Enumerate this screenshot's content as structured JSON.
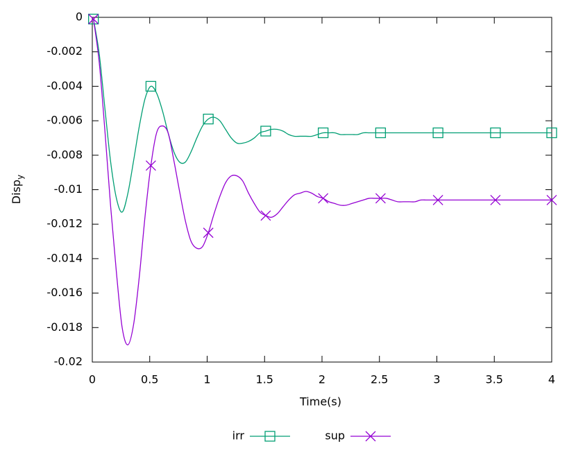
{
  "chart_data": {
    "type": "line",
    "xlabel": "Time(s)",
    "ylabel": "Disp",
    "ylabel_subscript": "y",
    "xlim": [
      0,
      4
    ],
    "xticks": [
      0,
      0.5,
      1,
      1.5,
      2,
      2.5,
      3,
      3.5,
      4
    ],
    "ylim": [
      -0.02,
      0
    ],
    "yticks": [
      0,
      -0.002,
      -0.004,
      -0.006,
      -0.008,
      -0.01,
      -0.012,
      -0.014,
      -0.016,
      -0.018,
      -0.02
    ],
    "legend": "bottom",
    "marker_every": 10,
    "x": [
      0.01,
      0.06,
      0.11,
      0.16,
      0.21,
      0.26,
      0.31,
      0.36,
      0.41,
      0.46,
      0.51,
      0.56,
      0.61,
      0.66,
      0.71,
      0.76,
      0.81,
      0.86,
      0.91,
      0.96,
      1.01,
      1.06,
      1.11,
      1.16,
      1.21,
      1.26,
      1.31,
      1.36,
      1.41,
      1.46,
      1.51,
      1.56,
      1.61,
      1.66,
      1.71,
      1.76,
      1.81,
      1.86,
      1.91,
      1.96,
      2.01,
      2.06,
      2.11,
      2.16,
      2.21,
      2.26,
      2.31,
      2.36,
      2.41,
      2.46,
      2.51,
      2.56,
      2.61,
      2.66,
      2.71,
      2.76,
      2.81,
      2.86,
      2.91,
      2.96,
      3.01,
      3.06,
      3.11,
      3.16,
      3.21,
      3.26,
      3.31,
      3.36,
      3.41,
      3.46,
      3.51,
      3.56,
      3.61,
      3.66,
      3.71,
      3.76,
      3.81,
      3.86,
      3.91,
      3.96,
      4
    ],
    "series": [
      {
        "name": "irr",
        "color": "#009e73",
        "marker": "square",
        "values": [
          -0.0001,
          -0.0021,
          -0.0053,
          -0.0084,
          -0.0105,
          -0.0113,
          -0.0102,
          -0.0083,
          -0.0063,
          -0.0047,
          -0.004,
          -0.0044,
          -0.0054,
          -0.0067,
          -0.0078,
          -0.0084,
          -0.0084,
          -0.0078,
          -0.007,
          -0.0063,
          -0.0059,
          -0.0058,
          -0.006,
          -0.0065,
          -0.007,
          -0.0073,
          -0.0073,
          -0.0072,
          -0.007,
          -0.0067,
          -0.0066,
          -0.0065,
          -0.0065,
          -0.0066,
          -0.0068,
          -0.0069,
          -0.0069,
          -0.0069,
          -0.0069,
          -0.0068,
          -0.0067,
          -0.0067,
          -0.0067,
          -0.0068,
          -0.0068,
          -0.0068,
          -0.0068,
          -0.0067,
          -0.0067,
          -0.0067,
          -0.0067,
          -0.0067,
          -0.0067,
          -0.0067,
          -0.0067,
          -0.0067,
          -0.0067,
          -0.0067,
          -0.0067,
          -0.0067,
          -0.0067,
          -0.0067,
          -0.0067,
          -0.0067,
          -0.0067,
          -0.0067,
          -0.0067,
          -0.0067,
          -0.0067,
          -0.0067,
          -0.0067,
          -0.0067,
          -0.0067,
          -0.0067,
          -0.0067,
          -0.0067,
          -0.0067,
          -0.0067,
          -0.0067,
          -0.0067,
          -0.0067
        ]
      },
      {
        "name": "sup",
        "color": "#9400d3",
        "marker": "cross",
        "values": [
          -0.0001,
          -0.0026,
          -0.0066,
          -0.011,
          -0.0148,
          -0.018,
          -0.019,
          -0.0178,
          -0.015,
          -0.0115,
          -0.0086,
          -0.0067,
          -0.0063,
          -0.0067,
          -0.0083,
          -0.0101,
          -0.0118,
          -0.013,
          -0.0134,
          -0.0133,
          -0.0125,
          -0.0114,
          -0.0104,
          -0.0096,
          -0.0092,
          -0.0092,
          -0.0095,
          -0.0102,
          -0.0108,
          -0.0113,
          -0.0115,
          -0.0116,
          -0.0114,
          -0.011,
          -0.0106,
          -0.0103,
          -0.0102,
          -0.0101,
          -0.0102,
          -0.0104,
          -0.0105,
          -0.0107,
          -0.0108,
          -0.0109,
          -0.0109,
          -0.0108,
          -0.0107,
          -0.0106,
          -0.0105,
          -0.0105,
          -0.0105,
          -0.0105,
          -0.0106,
          -0.0107,
          -0.0107,
          -0.0107,
          -0.0107,
          -0.0106,
          -0.0106,
          -0.0106,
          -0.0106,
          -0.0106,
          -0.0106,
          -0.0106,
          -0.0106,
          -0.0106,
          -0.0106,
          -0.0106,
          -0.0106,
          -0.0106,
          -0.0106,
          -0.0106,
          -0.0106,
          -0.0106,
          -0.0106,
          -0.0106,
          -0.0106,
          -0.0106,
          -0.0106,
          -0.0106,
          -0.0106
        ]
      }
    ]
  }
}
